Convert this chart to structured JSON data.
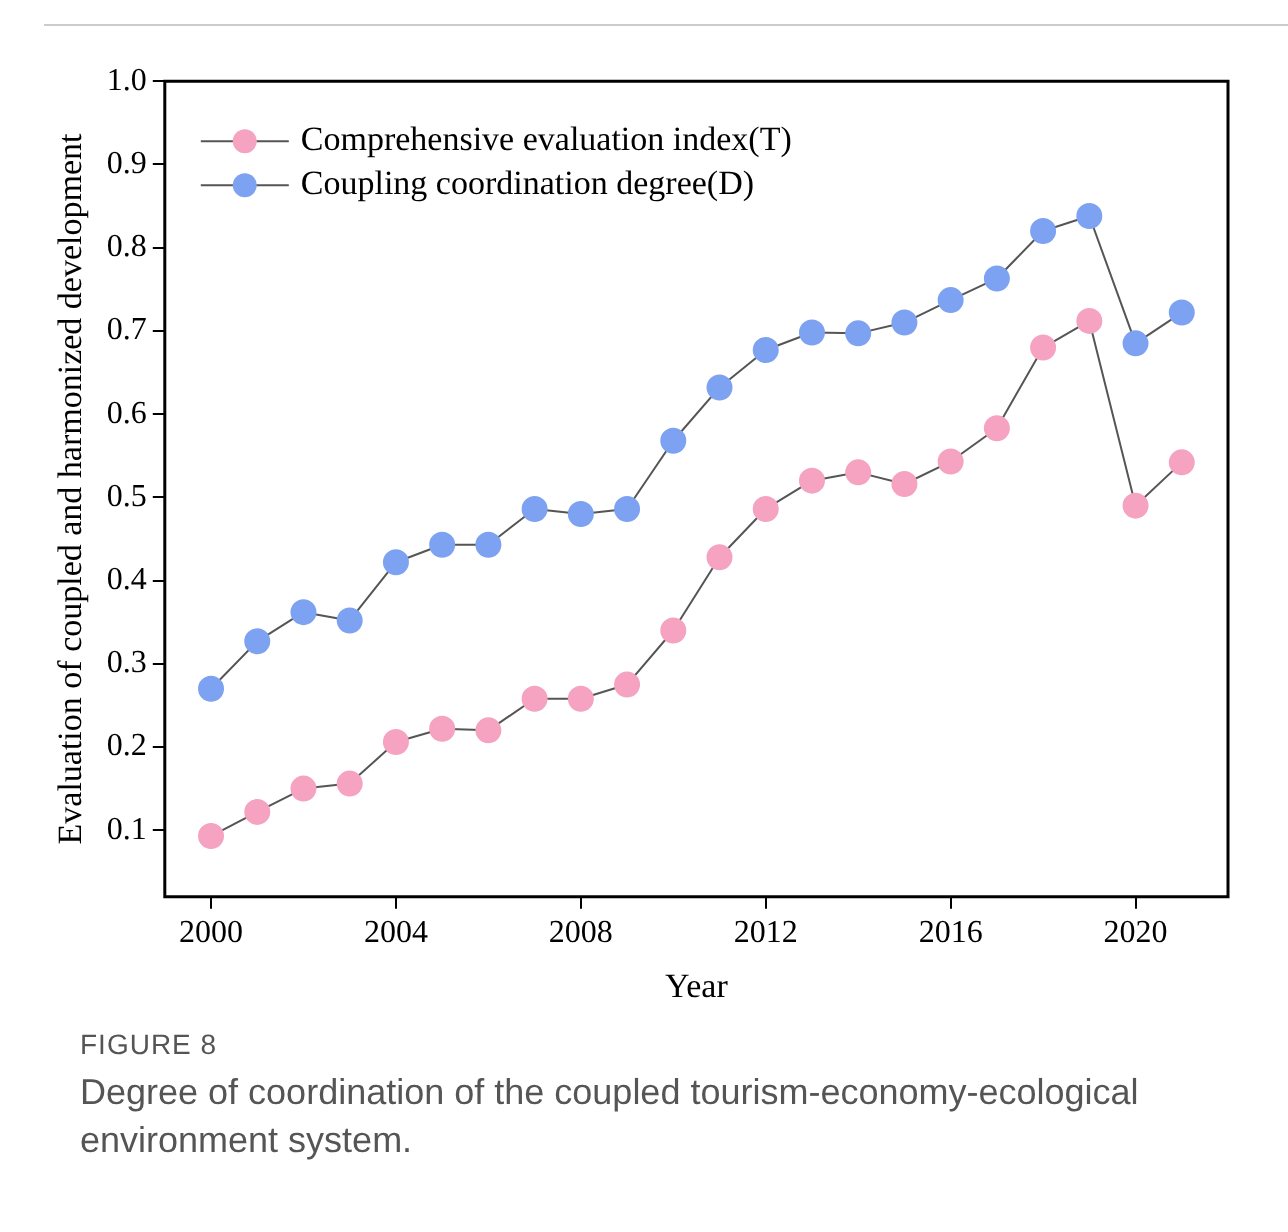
{
  "chart_data": {
    "type": "line",
    "title": "FIGURE 8",
    "subtitle": "Degree of coordination of the coupled tourism-economy-ecological environment system.",
    "xlabel": "Year",
    "ylabel": "Evaluation of coupled and harmonized development",
    "x": [
      2000,
      2001,
      2002,
      2003,
      2004,
      2005,
      2006,
      2007,
      2008,
      2009,
      2010,
      2011,
      2012,
      2013,
      2014,
      2015,
      2016,
      2017,
      2018,
      2019,
      2020,
      2021
    ],
    "series": [
      {
        "name": "Comprehensive evaluation index(T)",
        "color": "#f5a3c0",
        "values": [
          0.093,
          0.122,
          0.15,
          0.156,
          0.206,
          0.222,
          0.22,
          0.258,
          0.258,
          0.275,
          0.34,
          0.428,
          0.486,
          0.52,
          0.53,
          0.516,
          0.543,
          0.583,
          0.68,
          0.712,
          0.49,
          0.542
        ]
      },
      {
        "name": "Coupling coordination degree(D)",
        "color": "#7ea2f2",
        "values": [
          0.27,
          0.327,
          0.362,
          0.352,
          0.422,
          0.443,
          0.443,
          0.486,
          0.48,
          0.486,
          0.568,
          0.632,
          0.677,
          0.698,
          0.697,
          0.71,
          0.737,
          0.763,
          0.82,
          0.838,
          0.685,
          0.722
        ]
      }
    ],
    "xlim": [
      1999,
      2022
    ],
    "xticks": [
      2000,
      2004,
      2008,
      2012,
      2016,
      2020
    ],
    "ylim": [
      0.02,
      1.0
    ],
    "yticks": [
      0.1,
      0.2,
      0.3,
      0.4,
      0.5,
      0.6,
      0.7,
      0.8,
      0.9,
      {
        "value": 1.0,
        "label": "1.0"
      }
    ],
    "grid": false,
    "legend": "top left",
    "marker": "circle",
    "line_style": "solid"
  }
}
